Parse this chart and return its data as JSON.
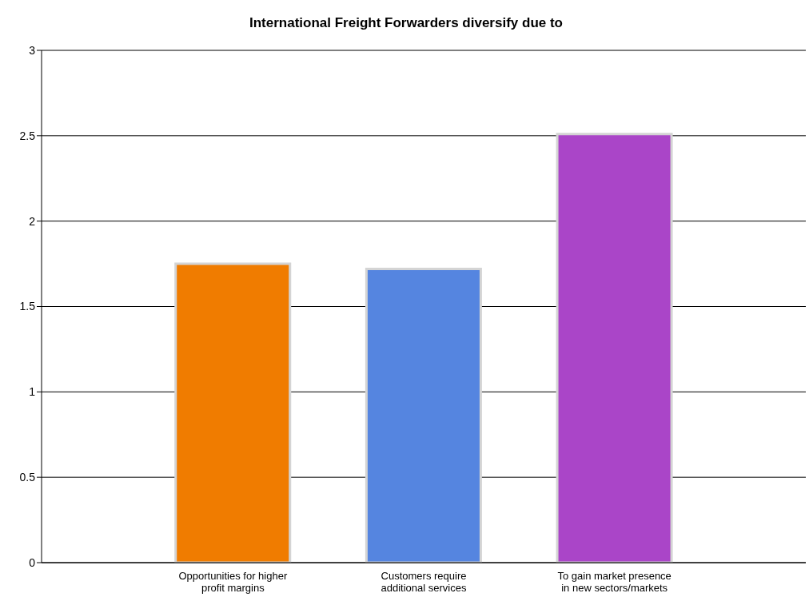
{
  "chart_data": {
    "type": "bar",
    "title": "International Freight Forwarders diversify due to",
    "categories": [
      "Opportunities for higher profit margins",
      "Customers require additional services",
      "To gain market presence in new sectors/markets"
    ],
    "values": [
      1.75,
      1.72,
      2.51
    ],
    "colors": [
      "#f07c00",
      "#5585e0",
      "#aa45c8"
    ],
    "ylim": [
      0,
      3
    ],
    "yticks": [
      0,
      0.5,
      1,
      1.5,
      2,
      2.5,
      3
    ],
    "grid": "y"
  }
}
